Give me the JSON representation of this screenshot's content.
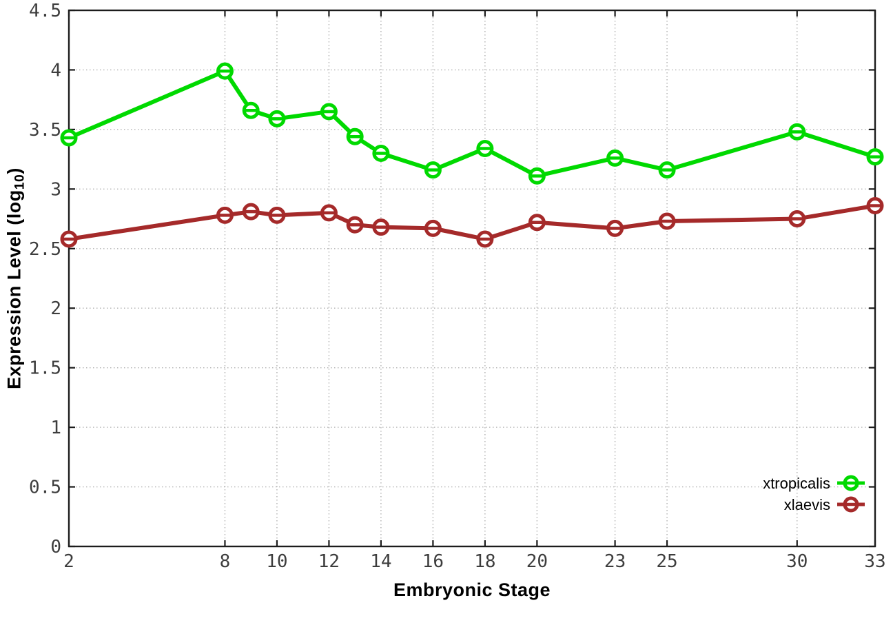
{
  "chart_data": {
    "type": "line",
    "title": "",
    "xlabel": "Embryonic Stage",
    "ylabel": {
      "prefix": "Expression Level (log",
      "sub": "10",
      "suffix": ")"
    },
    "x": [
      2,
      8,
      9,
      10,
      12,
      13,
      14,
      16,
      18,
      20,
      23,
      25,
      30,
      33
    ],
    "x_ticks": [
      2,
      8,
      10,
      12,
      14,
      16,
      18,
      20,
      23,
      25,
      30,
      33
    ],
    "y_ticks": [
      0,
      0.5,
      1,
      1.5,
      2,
      2.5,
      3,
      3.5,
      4,
      4.5
    ],
    "xlim": [
      2,
      33
    ],
    "ylim": [
      0,
      4.5
    ],
    "grid": true,
    "legend_position": "bottom-right",
    "series": [
      {
        "name": "xtropicalis",
        "color": "#00d900",
        "values": [
          3.43,
          3.99,
          3.66,
          3.59,
          3.65,
          3.44,
          3.3,
          3.16,
          3.34,
          3.11,
          3.26,
          3.16,
          3.48,
          3.27
        ]
      },
      {
        "name": "xlaevis",
        "color": "#a52a2a",
        "values": [
          2.58,
          2.78,
          2.81,
          2.78,
          2.8,
          2.7,
          2.68,
          2.67,
          2.58,
          2.72,
          2.67,
          2.73,
          2.75,
          2.86
        ]
      }
    ],
    "colors": {
      "border": "#1c1c1c",
      "grid": "#b0b0b0",
      "tick_label": "#3d3d3d",
      "background": "#ffffff"
    }
  }
}
